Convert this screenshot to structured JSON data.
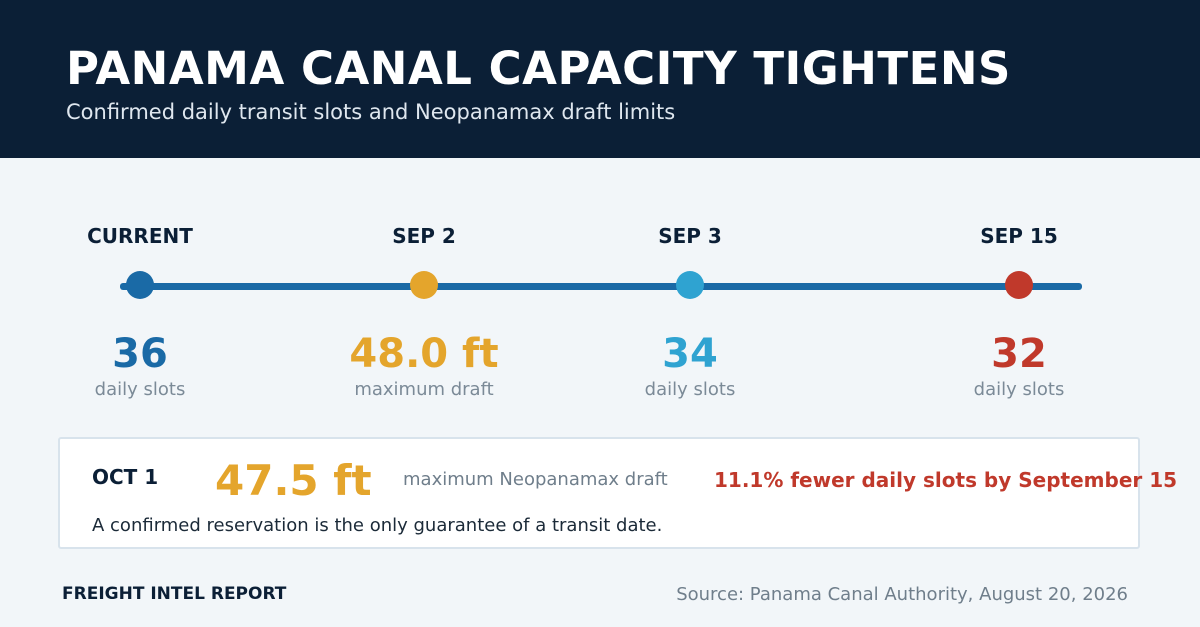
{
  "header": {
    "title": "PANAMA CANAL CAPACITY TIGHTENS",
    "subtitle": "Confirmed daily transit slots and Neopanamax draft limits"
  },
  "timeline": {
    "stops": [
      {
        "label": "CURRENT",
        "value": "36",
        "unit": "daily slots",
        "color": "#1a6aa6"
      },
      {
        "label": "SEP 2",
        "value": "48.0 ft",
        "unit": "maximum draft",
        "color": "#e4a52c"
      },
      {
        "label": "SEP 3",
        "value": "34",
        "unit": "daily slots",
        "color": "#2fa3d1"
      },
      {
        "label": "SEP 15",
        "value": "32",
        "unit": "daily slots",
        "color": "#c0392b"
      }
    ]
  },
  "callout": {
    "date": "OCT 1",
    "value": "47.5 ft",
    "description": "maximum Neopanamax draft",
    "alert": "11.1% fewer daily slots by September 15",
    "note": "A confirmed reservation is the only guarantee of a transit date."
  },
  "footer": {
    "brand": "FREIGHT INTEL REPORT",
    "source": "Source: Panama Canal Authority, August 20, 2026"
  }
}
